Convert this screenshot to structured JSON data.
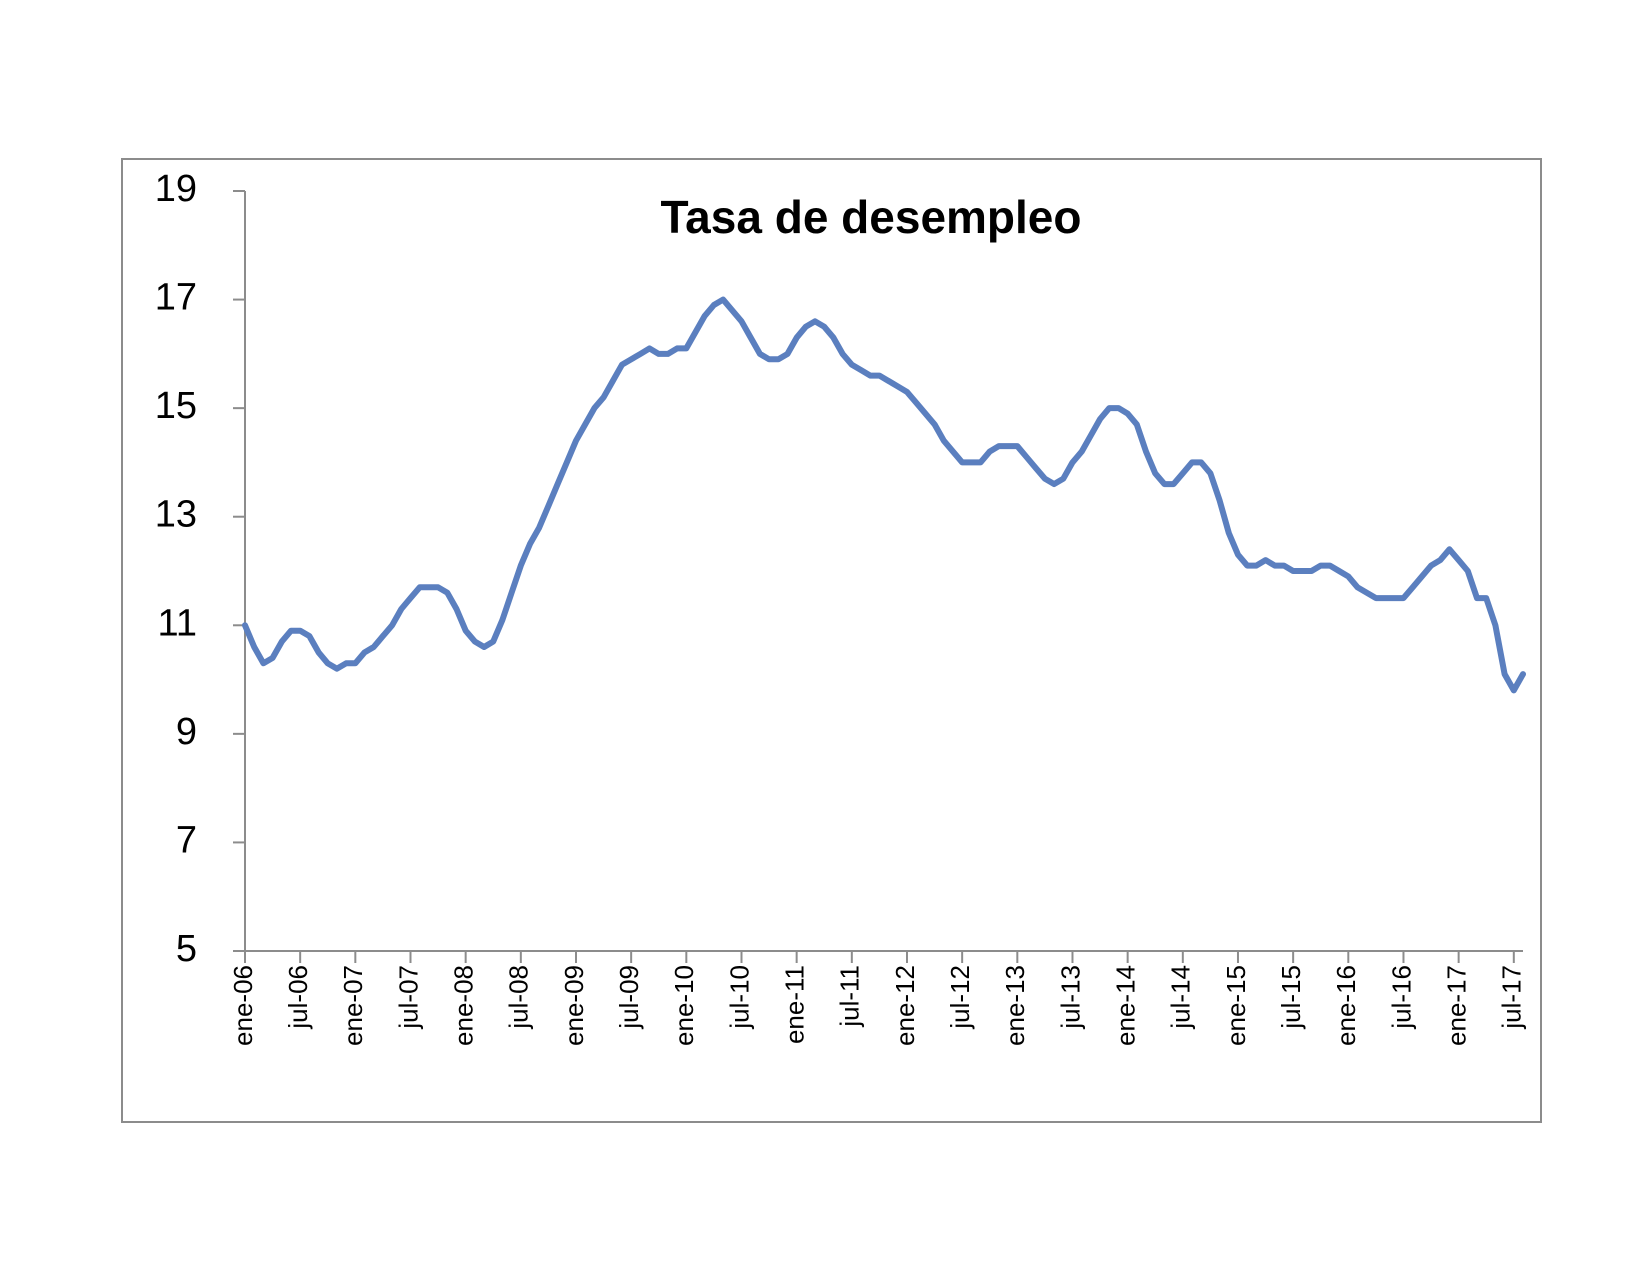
{
  "chart_data": {
    "type": "line",
    "title": "Tasa de desempleo",
    "categories": [
      "ene-06",
      null,
      null,
      null,
      null,
      null,
      "jul-06",
      null,
      null,
      null,
      null,
      null,
      "ene-07",
      null,
      null,
      null,
      null,
      null,
      "jul-07",
      null,
      null,
      null,
      null,
      null,
      "ene-08",
      null,
      null,
      null,
      null,
      null,
      "jul-08",
      null,
      null,
      null,
      null,
      null,
      "ene-09",
      null,
      null,
      null,
      null,
      null,
      "jul-09",
      null,
      null,
      null,
      null,
      null,
      "ene-10",
      null,
      null,
      null,
      null,
      null,
      "jul-10",
      null,
      null,
      null,
      null,
      null,
      "ene-11",
      null,
      null,
      null,
      null,
      null,
      "jul-11",
      null,
      null,
      null,
      null,
      null,
      "ene-12",
      null,
      null,
      null,
      null,
      null,
      "jul-12",
      null,
      null,
      null,
      null,
      null,
      "ene-13",
      null,
      null,
      null,
      null,
      null,
      "jul-13",
      null,
      null,
      null,
      null,
      null,
      "ene-14",
      null,
      null,
      null,
      null,
      null,
      "jul-14",
      null,
      null,
      null,
      null,
      null,
      "ene-15",
      null,
      null,
      null,
      null,
      null,
      "jul-15",
      null,
      null,
      null,
      null,
      null,
      "ene-16",
      null,
      null,
      null,
      null,
      null,
      "jul-16",
      null,
      null,
      null,
      null,
      null,
      "ene-17",
      null,
      null,
      null,
      null,
      null,
      "jul-17",
      null
    ],
    "values": [
      11.0,
      10.6,
      10.3,
      10.4,
      10.7,
      10.9,
      10.9,
      10.8,
      10.5,
      10.3,
      10.2,
      10.3,
      10.3,
      10.5,
      10.6,
      10.8,
      11.0,
      11.3,
      11.5,
      11.7,
      11.7,
      11.7,
      11.6,
      11.3,
      10.9,
      10.7,
      10.6,
      10.7,
      11.1,
      11.6,
      12.1,
      12.5,
      12.8,
      13.2,
      13.6,
      14.0,
      14.4,
      14.7,
      15.0,
      15.2,
      15.5,
      15.8,
      15.9,
      16.0,
      16.1,
      16.0,
      16.0,
      16.1,
      16.1,
      16.4,
      16.7,
      16.9,
      17.0,
      16.8,
      16.6,
      16.3,
      16.0,
      15.9,
      15.9,
      16.0,
      16.3,
      16.5,
      16.6,
      16.5,
      16.3,
      16.0,
      15.8,
      15.7,
      15.6,
      15.6,
      15.5,
      15.4,
      15.3,
      15.1,
      14.9,
      14.7,
      14.4,
      14.2,
      14.0,
      14.0,
      14.0,
      14.2,
      14.3,
      14.3,
      14.3,
      14.1,
      13.9,
      13.7,
      13.6,
      13.7,
      14.0,
      14.2,
      14.5,
      14.8,
      15.0,
      15.0,
      14.9,
      14.7,
      14.2,
      13.8,
      13.6,
      13.6,
      13.8,
      14.0,
      14.0,
      13.8,
      13.3,
      12.7,
      12.3,
      12.1,
      12.1,
      12.2,
      12.1,
      12.1,
      12.0,
      12.0,
      12.0,
      12.1,
      12.1,
      12.0,
      11.9,
      11.7,
      11.6,
      11.5,
      11.5,
      11.5,
      11.5,
      11.7,
      11.9,
      12.1,
      12.2,
      12.4,
      12.2,
      12.0,
      11.5,
      11.5,
      11.0,
      10.1,
      9.8,
      10.1
    ],
    "color": "#5b7fbf",
    "ylim": [
      5,
      19
    ],
    "yticks": [
      5,
      7,
      9,
      11,
      13,
      15,
      17,
      19
    ],
    "grid": false
  }
}
